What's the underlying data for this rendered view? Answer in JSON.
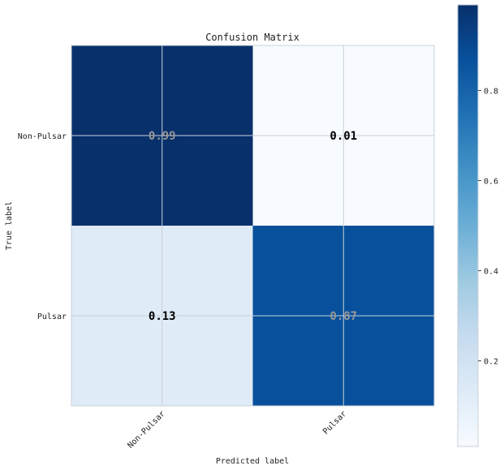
{
  "chart_data": {
    "type": "heatmap",
    "title": "Confusion Matrix",
    "xlabel": "Predicted label",
    "ylabel": "True label",
    "row_labels": [
      "Non-Pulsar",
      "Pulsar"
    ],
    "col_labels": [
      "Non-Pulsar",
      "Pulsar"
    ],
    "values": [
      [
        0.99,
        0.01
      ],
      [
        0.13,
        0.87
      ]
    ],
    "cell_text": [
      [
        "0.99",
        "0.01"
      ],
      [
        "0.13",
        "0.87"
      ]
    ],
    "colormap": "Blues",
    "colorbar": {
      "range": [
        0.01,
        0.99
      ],
      "ticks": [
        0.2,
        0.4,
        0.6,
        0.8
      ],
      "tick_labels": [
        "0.2",
        "0.4",
        "0.6",
        "0.8"
      ]
    },
    "grid": true,
    "colors": {
      "dark_text": "#000000",
      "light_text": "#999999",
      "grid": "#c8d0d8"
    }
  }
}
